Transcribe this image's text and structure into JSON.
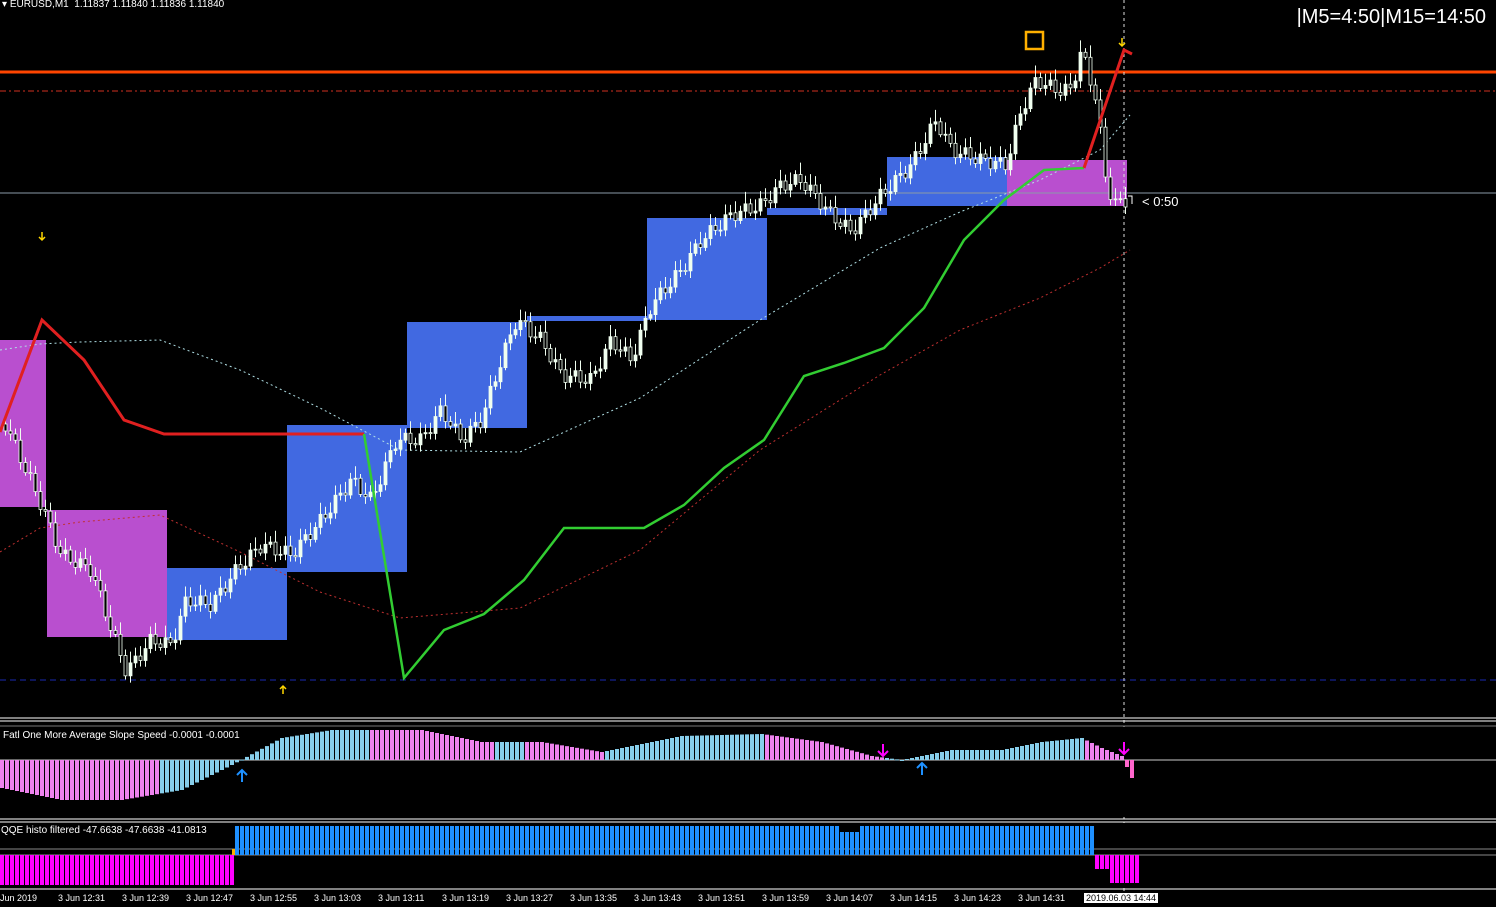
{
  "chart_header": {
    "symbol": "EURUSD,M1",
    "ohlc": "1.11837 1.11840 1.11836 1.11840"
  },
  "timer_label": "|M5=4:50|M15=14:50",
  "countdown_label": "< 0:50",
  "indicator1": {
    "title": "Fatl One More Average Slope Speed -0.0001 -0.0001"
  },
  "indicator2": {
    "title": "QQE histo filtered  -47.6638 -47.6638 -41.0813"
  },
  "time_axis": {
    "labels": [
      "Jun 2019",
      "3 Jun 12:31",
      "3 Jun 12:39",
      "3 Jun 12:47",
      "3 Jun 12:55",
      "3 Jun 13:03",
      "3 Jun 13:11",
      "3 Jun 13:19",
      "3 Jun 13:27",
      "3 Jun 13:35",
      "3 Jun 13:43",
      "3 Jun 13:51",
      "3 Jun 13:59",
      "3 Jun 14:07",
      "3 Jun 14:15",
      "3 Jun 14:23",
      "3 Jun 14:31"
    ],
    "current": "2019.06.03 14:44"
  },
  "colors": {
    "background": "#000000",
    "bull_box": "#4169e1",
    "bear_box": "#b94fcf",
    "resistance_line": "#ff4500",
    "step_line_red": "#e02020",
    "step_line_green": "#32cd32",
    "candle": "#f0fff0",
    "hist_blue": "#87ceeb",
    "hist_pink": "#ee82ee",
    "qqe_blue": "#1e90ff",
    "qqe_magenta": "#ff00ff"
  },
  "icons": {
    "signal_arrow_down": "arrow-down-icon",
    "signal_arrow_up": "arrow-up-icon",
    "marker": "square-marker-icon"
  }
}
